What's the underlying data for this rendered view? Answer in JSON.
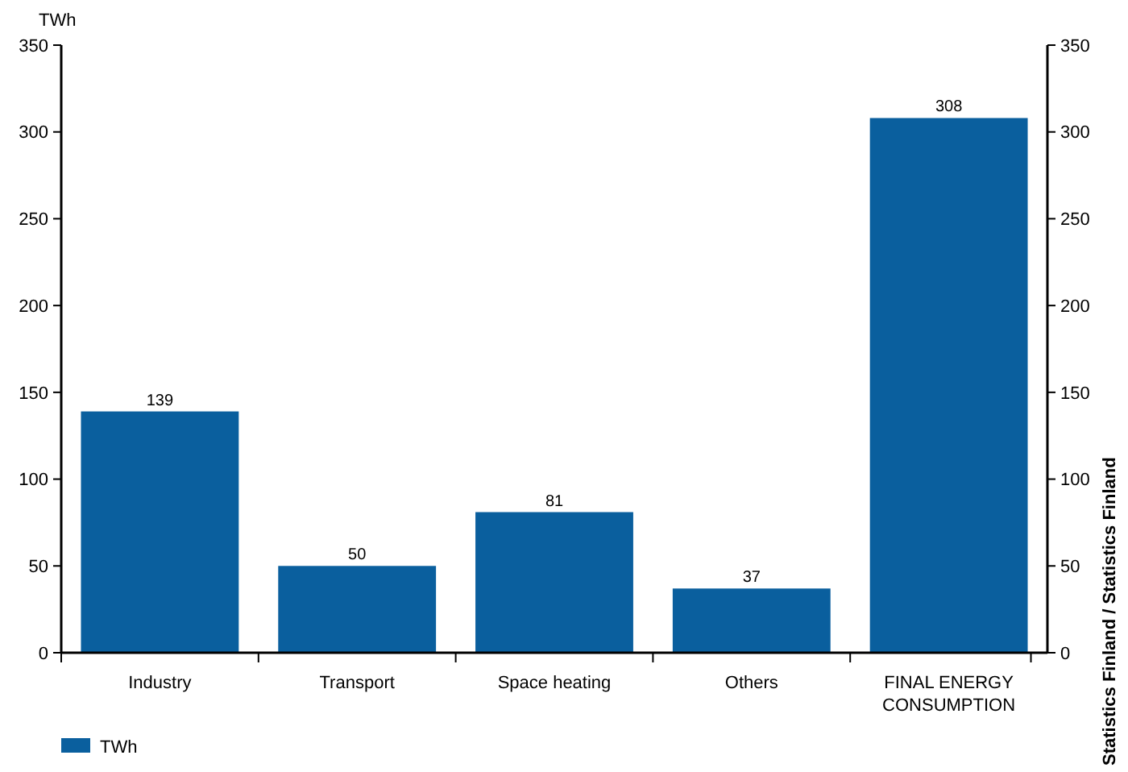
{
  "chart_data": {
    "type": "bar",
    "ylabel": "TWh",
    "categories": [
      "Industry",
      "Transport",
      "Space heating",
      "Others",
      "FINAL ENERGY CONSUMPTION"
    ],
    "series": [
      {
        "name": "TWh",
        "color": "#0a5f9e",
        "values": [
          139,
          50,
          81,
          37,
          308
        ]
      }
    ],
    "ylim": [
      0,
      350
    ],
    "yticks": [
      0,
      50,
      100,
      150,
      200,
      250,
      300,
      350
    ],
    "y2lim": [
      0,
      350
    ],
    "y2ticks": [
      0,
      50,
      100,
      150,
      200,
      250,
      300,
      350
    ],
    "data_labels": true,
    "grid": false,
    "legend": "bottom left",
    "annotations": [
      "Statistics Finland / Statistics Finland"
    ]
  }
}
